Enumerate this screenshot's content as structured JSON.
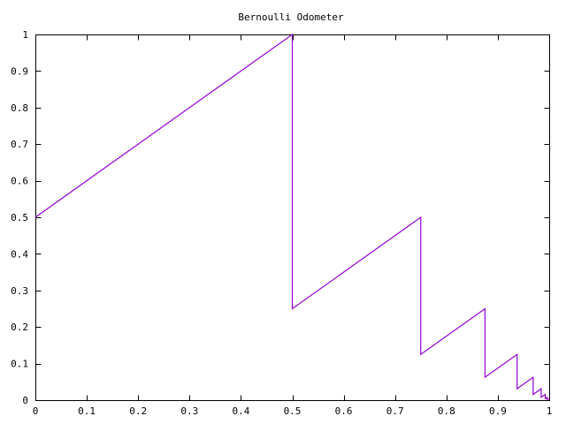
{
  "chart_data": {
    "type": "line",
    "title": "Bernoulli Odometer",
    "xlabel": "",
    "ylabel": "",
    "xlim": [
      0,
      1
    ],
    "ylim": [
      0,
      1
    ],
    "grid": false,
    "legend": "none",
    "x_ticks": [
      "0",
      "0.1",
      "0.2",
      "0.3",
      "0.4",
      "0.5",
      "0.6",
      "0.7",
      "0.8",
      "0.9",
      "1"
    ],
    "y_ticks": [
      "0",
      "0.1",
      "0.2",
      "0.3",
      "0.4",
      "0.5",
      "0.6",
      "0.7",
      "0.8",
      "0.9",
      "1"
    ],
    "series": [
      {
        "color": "#9400d3",
        "points": [
          [
            0,
            0.5
          ],
          [
            0.5,
            1.0
          ],
          [
            0.5,
            0.25
          ],
          [
            0.75,
            0.5
          ],
          [
            0.75,
            0.125
          ],
          [
            0.875,
            0.25
          ],
          [
            0.875,
            0.0625
          ],
          [
            0.9375,
            0.125
          ],
          [
            0.9375,
            0.03125
          ],
          [
            0.96875,
            0.0625
          ],
          [
            0.96875,
            0.015625
          ],
          [
            0.984375,
            0.03125
          ],
          [
            0.984375,
            0.0078125
          ],
          [
            0.9921875,
            0.015625
          ],
          [
            0.9921875,
            0.00390625
          ],
          [
            0.99609375,
            0.0078125
          ],
          [
            0.99609375,
            0.001953125
          ],
          [
            1.0,
            0.00390625
          ]
        ]
      }
    ]
  }
}
